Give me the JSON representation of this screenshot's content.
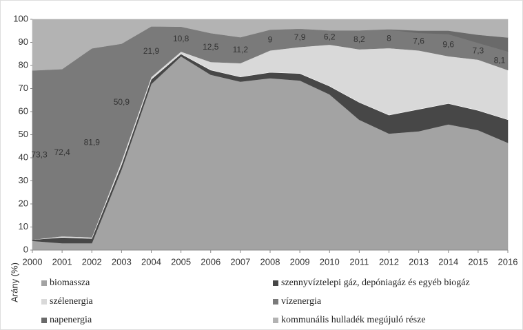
{
  "chart_data": {
    "type": "stacked_area",
    "y_label": "Arány (%)",
    "categories": [
      "2000",
      "2001",
      "2002",
      "2003",
      "2004",
      "2005",
      "2006",
      "2007",
      "2008",
      "2009",
      "2010",
      "2011",
      "2012",
      "2013",
      "2014",
      "2015",
      "2016"
    ],
    "ylim": [
      0,
      100
    ],
    "yticks": [
      0,
      10,
      20,
      30,
      40,
      50,
      60,
      70,
      80,
      90,
      100
    ],
    "label_series": 3,
    "series": [
      {
        "name": "biomassza",
        "color": "#a3a3a3",
        "values": [
          4,
          3,
          3,
          35,
          72,
          84,
          76,
          73,
          74.5,
          73.5,
          67.5,
          56.5,
          50.5,
          51.5,
          54.5,
          52,
          46.5
        ]
      },
      {
        "name": "szennyvíztelepi gáz, depóniagáz és egyéb biogáz",
        "color": "#474747",
        "values": [
          0.5,
          2.5,
          2,
          2,
          2,
          1,
          2,
          2,
          2.5,
          3,
          3.5,
          7.5,
          8,
          9.5,
          9,
          8.5,
          10
        ]
      },
      {
        "name": "szélenergia",
        "color": "#d9d9d9",
        "values": [
          0,
          0.5,
          0.5,
          1.5,
          1,
          1,
          3.5,
          6,
          9.5,
          11.5,
          18,
          23,
          29,
          25.5,
          20.5,
          22,
          21.5
        ]
      },
      {
        "name": "vízenergia",
        "color": "#7a7a7a",
        "values": [
          73.3,
          72.4,
          81.9,
          50.9,
          21.9,
          10.8,
          12.5,
          11.2,
          9,
          7.9,
          6.2,
          8.2,
          8,
          7.6,
          9.6,
          7.3,
          8.1
        ],
        "value_labels": [
          "73,3",
          "72,4",
          "81,9",
          "50,9",
          "21,9",
          "10,8",
          "12,5",
          "11,2",
          "9",
          "7,9",
          "6,2",
          "8,2",
          "8",
          "7,6",
          "9,6",
          "7,3",
          "8,1"
        ]
      },
      {
        "name": "napenergia",
        "color": "#6a6a6a",
        "values": [
          0,
          0,
          0,
          0,
          0,
          0,
          0,
          0,
          0,
          0,
          0,
          0,
          0.2,
          1,
          1.5,
          3.5,
          6
        ]
      },
      {
        "name": "kommunális hulladék megújuló része",
        "color": "#b3b3b3",
        "values": [
          22.2,
          21.6,
          12.6,
          10.6,
          3.1,
          3.2,
          6,
          7.8,
          4.5,
          4.1,
          4.8,
          4.8,
          4.3,
          4.9,
          4.9,
          6.7,
          7.9
        ]
      }
    ]
  }
}
